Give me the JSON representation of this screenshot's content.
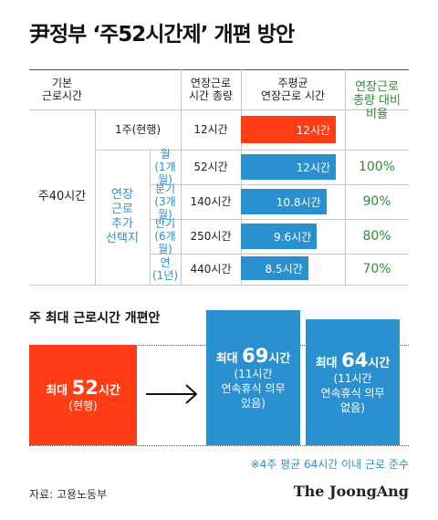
{
  "title": "尹정부 ‘주52시간제’ 개편 방안",
  "table": {
    "headers": {
      "basic": "기본\n근로시간",
      "total": "연장근로\n시간 총량",
      "weekly_avg": "주평균\n연장근로 시간",
      "ratio": "연장근로\n총량 대비\n비율"
    },
    "basic_value": "주40시간",
    "option_group": "연장\n근로\n추가\n선택지",
    "rows": [
      {
        "unit": "1주(현행)",
        "total": "12시간",
        "ratio": ""
      },
      {
        "unit": "월\n(1개월)",
        "total": "52시간",
        "ratio": "100%"
      },
      {
        "unit": "분기\n(3개월)",
        "total": "140시간",
        "ratio": "90%"
      },
      {
        "unit": "반기\n(6개월)",
        "total": "250시간",
        "ratio": "80%"
      },
      {
        "unit": "연\n(1년)",
        "total": "440시간",
        "ratio": "70%"
      }
    ]
  },
  "chart_data": {
    "type": "bar",
    "orientation": "horizontal",
    "categories": [
      "1주(현행)",
      "월(1개월)",
      "분기(3개월)",
      "반기(6개월)",
      "연(1년)"
    ],
    "values": [
      12,
      12,
      10.8,
      9.6,
      8.5
    ],
    "value_labels": [
      "12시간",
      "12시간",
      "10.8시간",
      "9.6시간",
      "8.5시간"
    ],
    "colors": [
      "#ff3c14",
      "#2b90cf",
      "#2b90cf",
      "#2b90cf",
      "#2b90cf"
    ],
    "xlim": [
      0,
      12
    ]
  },
  "section": {
    "title": "주 최대 근로시간 개편안",
    "current": {
      "prefix": "최대",
      "number": "52",
      "suffix": "시간",
      "note": "(현행)"
    },
    "option1": {
      "prefix": "최대",
      "number": "69",
      "suffix": "시간",
      "note": "(11시간\n연속휴식 의무\n있음)"
    },
    "option2": {
      "prefix": "최대",
      "number": "64",
      "suffix": "시간",
      "note": "(11시간\n연속휴식 의무\n없음)"
    },
    "footnote": "※4주 평균 64시간 이내 근로 준수"
  },
  "colors": {
    "red": "#ff3c14",
    "blue": "#2b90cf",
    "green": "#2e8b3a"
  },
  "source": "자료: 고용노동부",
  "brand": "The JoongAng"
}
